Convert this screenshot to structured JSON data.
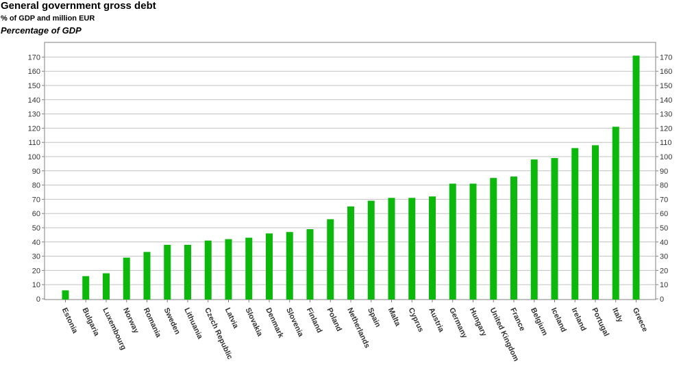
{
  "header": {
    "title": "General government gross debt",
    "subtitle": "% of GDP and million EUR",
    "unit": "Percentage of GDP"
  },
  "colors": {
    "bar": "#0db80d",
    "grid": "#c0c0c0",
    "axis": "#7f7f7f"
  },
  "chart_data": {
    "type": "bar",
    "title": "General government gross debt",
    "subtitle": "% of GDP and million EUR",
    "ylabel": "Percentage of GDP",
    "xlabel": "",
    "ylim": [
      0,
      180
    ],
    "yticks": [
      0,
      10,
      20,
      30,
      40,
      50,
      60,
      70,
      80,
      90,
      100,
      110,
      120,
      130,
      140,
      150,
      160,
      170
    ],
    "grid": true,
    "categories": [
      "Estonia",
      "Bulgaria",
      "Luxembourg",
      "Norway",
      "Romania",
      "Sweden",
      "Lithuania",
      "Czech Republic",
      "Latvia",
      "Slovakia",
      "Denmark",
      "Slovenia",
      "Finland",
      "Poland",
      "Netherlands",
      "Spain",
      "Malta",
      "Cyprus",
      "Austria",
      "Germany",
      "Hungary",
      "United Kingdom",
      "France",
      "Belgium",
      "Iceland",
      "Ireland",
      "Portugal",
      "Italy",
      "Greece"
    ],
    "values": [
      6,
      16,
      18,
      29,
      33,
      38,
      38,
      41,
      42,
      43,
      46,
      47,
      49,
      56,
      65,
      69,
      71,
      71,
      72,
      81,
      81,
      85,
      86,
      98,
      99,
      106,
      108,
      121,
      171
    ]
  }
}
